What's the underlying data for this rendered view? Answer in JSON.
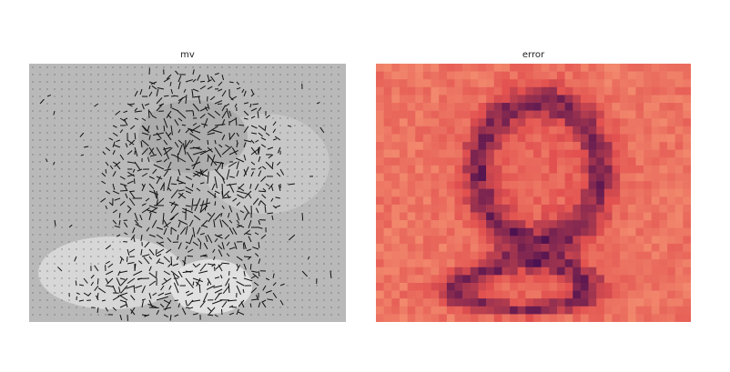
{
  "panels": {
    "mv": {
      "title": "mv"
    },
    "error": {
      "title": "error"
    }
  },
  "colors": {
    "background": "#ffffff",
    "mv_bg_gray": "#b9b9b9",
    "mv_light_patch": "#e6e6e6",
    "arrow": "#111111",
    "error_low": "#f9a27a",
    "error_mid": "#e2504f",
    "error_high": "#4b1050"
  }
}
